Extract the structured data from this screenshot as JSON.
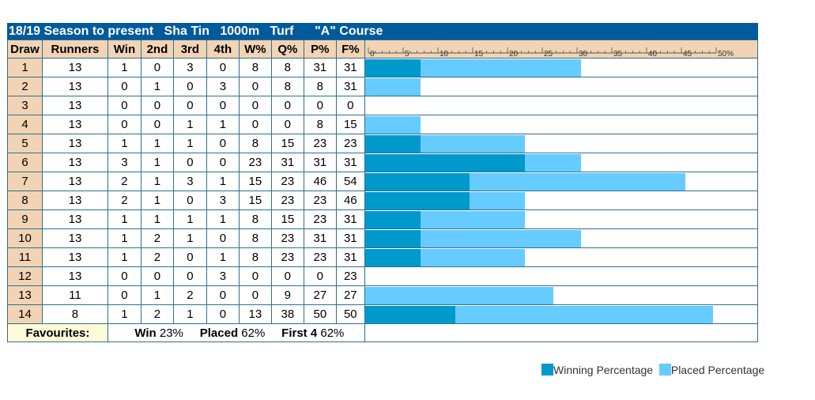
{
  "title": "18/19 Season to present   Sha Tin   1000m   Turf      \"A\" Course",
  "headers": [
    "Draw",
    "Runners",
    "Win",
    "2nd",
    "3rd",
    "4th",
    "W%",
    "Q%",
    "P%",
    "F%"
  ],
  "rows": [
    [
      "1",
      "13",
      "1",
      "0",
      "3",
      "0",
      "8",
      "8",
      "31",
      "31"
    ],
    [
      "2",
      "13",
      "0",
      "1",
      "0",
      "3",
      "0",
      "8",
      "8",
      "31"
    ],
    [
      "3",
      "13",
      "0",
      "0",
      "0",
      "0",
      "0",
      "0",
      "0",
      "0"
    ],
    [
      "4",
      "13",
      "0",
      "0",
      "1",
      "1",
      "0",
      "0",
      "8",
      "15"
    ],
    [
      "5",
      "13",
      "1",
      "1",
      "1",
      "0",
      "8",
      "15",
      "23",
      "23"
    ],
    [
      "6",
      "13",
      "3",
      "1",
      "0",
      "0",
      "23",
      "31",
      "31",
      "31"
    ],
    [
      "7",
      "13",
      "2",
      "1",
      "3",
      "1",
      "15",
      "23",
      "46",
      "54"
    ],
    [
      "8",
      "13",
      "2",
      "1",
      "0",
      "3",
      "15",
      "23",
      "23",
      "46"
    ],
    [
      "9",
      "13",
      "1",
      "1",
      "1",
      "1",
      "8",
      "15",
      "23",
      "31"
    ],
    [
      "10",
      "13",
      "1",
      "2",
      "1",
      "0",
      "8",
      "23",
      "31",
      "31"
    ],
    [
      "11",
      "13",
      "1",
      "2",
      "0",
      "1",
      "8",
      "23",
      "23",
      "31"
    ],
    [
      "12",
      "13",
      "0",
      "0",
      "0",
      "3",
      "0",
      "0",
      "0",
      "23"
    ],
    [
      "13",
      "11",
      "0",
      "1",
      "2",
      "0",
      "0",
      "9",
      "27",
      "27"
    ],
    [
      "14",
      "8",
      "1",
      "2",
      "1",
      "0",
      "13",
      "38",
      "50",
      "50"
    ]
  ],
  "favourites": {
    "label": "Favourites:",
    "win_label": "Win",
    "win_value": "23%",
    "placed_label": "Placed",
    "placed_value": "62%",
    "first4_label": "First 4",
    "first4_value": "62%"
  },
  "legend": {
    "winning": "Winning Percentage",
    "placed": "Placed Percentage"
  },
  "colors": {
    "title_bg": "#005a9c",
    "header_bg": "#f2d4b4",
    "winning": "#0099cc",
    "placed": "#66ccff",
    "fav_bg": "#fffad8"
  },
  "chart_data": {
    "type": "bar",
    "orientation": "horizontal",
    "categories": [
      "1",
      "2",
      "3",
      "4",
      "5",
      "6",
      "7",
      "8",
      "9",
      "10",
      "11",
      "12",
      "13",
      "14"
    ],
    "series": [
      {
        "name": "Winning Percentage",
        "values": [
          8,
          0,
          0,
          0,
          8,
          23,
          15,
          15,
          8,
          8,
          8,
          0,
          0,
          13
        ]
      },
      {
        "name": "Placed Percentage",
        "values": [
          31,
          8,
          0,
          8,
          23,
          31,
          46,
          23,
          23,
          31,
          23,
          0,
          27,
          50
        ]
      }
    ],
    "xlim": [
      0,
      50
    ],
    "ticks": [
      "0",
      "5",
      "10",
      "15",
      "20",
      "25",
      "30",
      "35",
      "40",
      "45",
      "50%"
    ],
    "legend": "bottom-right"
  }
}
